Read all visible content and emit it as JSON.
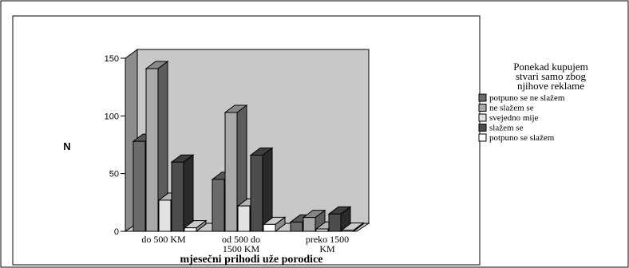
{
  "chart_data": {
    "type": "bar",
    "style": "3d-clustered",
    "ylabel": "N",
    "xlabel": "mjesečni prihodi uže porodice",
    "ylim": [
      0,
      150
    ],
    "yticks": [
      0,
      50,
      100,
      150
    ],
    "categories": [
      [
        "do 500 KM"
      ],
      [
        "od 500 do",
        "1500 KM"
      ],
      [
        "preko 1500",
        "KM"
      ]
    ],
    "legend": {
      "title": [
        "Ponekad kupujem",
        "stvari samo zbog",
        "njihove reklame"
      ],
      "placement": "right"
    },
    "series": [
      {
        "name": "potpuno se ne slažem",
        "color": "#6b6b6b",
        "values": [
          78,
          45,
          8
        ]
      },
      {
        "name": "ne slažem se",
        "color": "#a9a9a9",
        "values": [
          141,
          103,
          12
        ]
      },
      {
        "name": "svejedno mije",
        "color": "#e2e2e2",
        "values": [
          27,
          22,
          2
        ]
      },
      {
        "name": "slažem se",
        "color": "#4d4d4d",
        "values": [
          60,
          66,
          15
        ]
      },
      {
        "name": "potpuno se slažem",
        "color": "#ffffff",
        "values": [
          3,
          6,
          1
        ]
      }
    ]
  }
}
